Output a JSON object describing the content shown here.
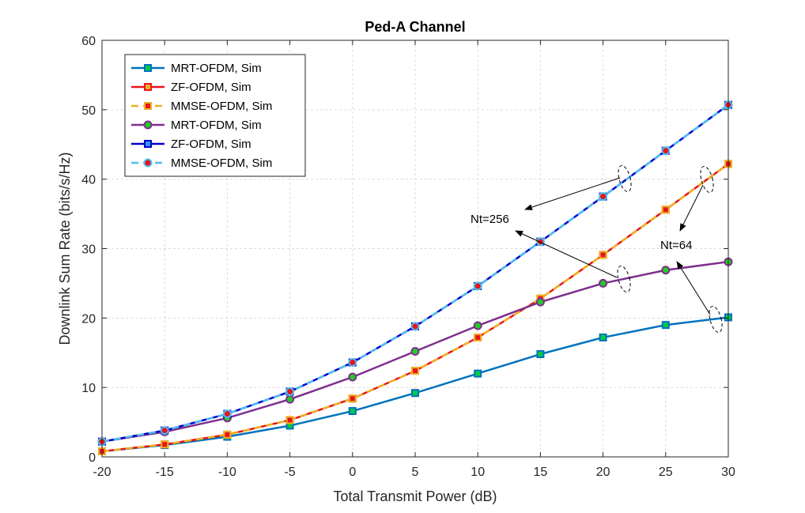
{
  "chart_data": {
    "type": "line",
    "title": "Ped-A Channel",
    "xlabel": "Total Transmit Power (dB)",
    "ylabel": "Downlink Sum Rate (bits/s/Hz)",
    "xlim": [
      -20,
      30
    ],
    "ylim": [
      0,
      60
    ],
    "xticks": [
      -20,
      -15,
      -10,
      -5,
      0,
      5,
      10,
      15,
      20,
      25,
      30
    ],
    "yticks": [
      0,
      10,
      20,
      30,
      40,
      50,
      60
    ],
    "grid": true,
    "legend_position": "top-left",
    "x": [
      -20,
      -15,
      -10,
      -5,
      0,
      5,
      10,
      15,
      20,
      25,
      30
    ],
    "series": [
      {
        "name": "MRT-OFDM, Sim",
        "color": "#0072BD",
        "marker": "square",
        "marker_fill": "#00cc44",
        "dash": "solid",
        "values": [
          0.8,
          1.7,
          2.9,
          4.5,
          6.6,
          9.2,
          12.0,
          14.8,
          17.2,
          19.0,
          20.1
        ]
      },
      {
        "name": "ZF-OFDM, Sim",
        "color": "#e8141e",
        "marker": "square",
        "marker_fill": "#e8b020",
        "dash": "solid",
        "values": [
          0.8,
          1.8,
          3.2,
          5.3,
          8.4,
          12.4,
          17.2,
          22.8,
          29.1,
          35.6,
          42.2
        ]
      },
      {
        "name": "MMSE-OFDM, Sim",
        "color": "#EDB120",
        "marker": "square",
        "marker_fill": "#e8141e",
        "dash": "dashed",
        "values": [
          0.8,
          1.8,
          3.2,
          5.3,
          8.4,
          12.4,
          17.2,
          22.8,
          29.1,
          35.6,
          42.2
        ]
      },
      {
        "name": "MRT-OFDM, Sim",
        "color": "#7E2F8E",
        "marker": "circle",
        "marker_fill": "#22cc22",
        "dash": "solid",
        "values": [
          2.2,
          3.6,
          5.6,
          8.3,
          11.5,
          15.2,
          18.9,
          22.3,
          25.0,
          26.9,
          28.1
        ]
      },
      {
        "name": "ZF-OFDM, Sim",
        "color": "#0000cc",
        "marker": "square",
        "marker_fill": "#3399ff",
        "dash": "solid",
        "values": [
          2.2,
          3.8,
          6.2,
          9.4,
          13.6,
          18.8,
          24.6,
          31.0,
          37.5,
          44.1,
          50.7
        ]
      },
      {
        "name": "MMSE-OFDM, Sim",
        "color": "#4DBEEE",
        "marker": "circle",
        "marker_fill": "#e8141e",
        "dash": "dashed",
        "values": [
          2.2,
          3.8,
          6.2,
          9.4,
          13.6,
          18.8,
          24.6,
          31.0,
          37.5,
          44.1,
          50.7
        ]
      }
    ],
    "annotations": [
      {
        "label": "Nt=256"
      },
      {
        "label": "Nt=64"
      }
    ]
  }
}
